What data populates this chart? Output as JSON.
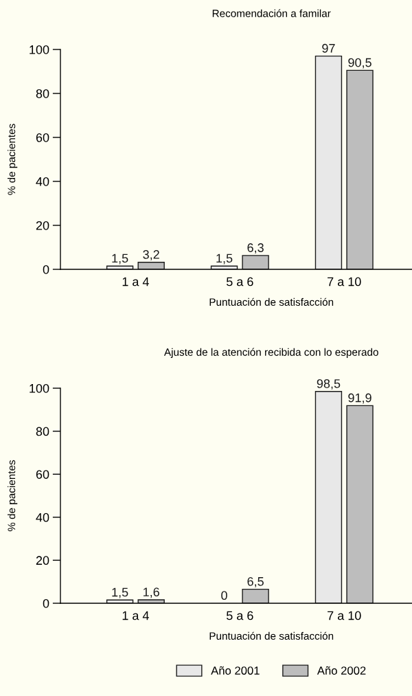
{
  "chart_data": [
    {
      "type": "bar",
      "title": "Recomendación a familar",
      "xlabel": "Puntuación de satisfacción",
      "ylabel": "% de pacientes",
      "categories": [
        "1 a 4",
        "5 a 6",
        "7 a 10"
      ],
      "ylim": [
        0,
        100
      ],
      "yticks": [
        0,
        20,
        40,
        60,
        80,
        100
      ],
      "grid": false,
      "series": [
        {
          "color": "#e8e8e8",
          "values": [
            1.5,
            1.5,
            97
          ],
          "value_labels": [
            "1,5",
            "1,5",
            "97"
          ]
        },
        {
          "color": "#bdbdbd",
          "values": [
            3.2,
            6.3,
            90.5
          ],
          "value_labels": [
            "3,2",
            "6,3",
            "90,5"
          ]
        }
      ]
    },
    {
      "type": "bar",
      "title": "Ajuste de la atención recibida con lo esperado",
      "xlabel": "Puntuación de satisfacción",
      "ylabel": "% de pacientes",
      "categories": [
        "1 a 4",
        "5 a 6",
        "7 a 10"
      ],
      "ylim": [
        0,
        100
      ],
      "yticks": [
        0,
        20,
        40,
        60,
        80,
        100
      ],
      "grid": false,
      "legend": "bottom",
      "series": [
        {
          "name": "Año 2001",
          "color": "#e8e8e8",
          "values": [
            1.5,
            0,
            98.5
          ],
          "value_labels": [
            "1,5",
            "0",
            "98,5"
          ]
        },
        {
          "name": "Año 2002",
          "color": "#bdbdbd",
          "values": [
            1.6,
            6.5,
            91.9
          ],
          "value_labels": [
            "1,6",
            "6,5",
            "91,9"
          ]
        }
      ]
    }
  ]
}
